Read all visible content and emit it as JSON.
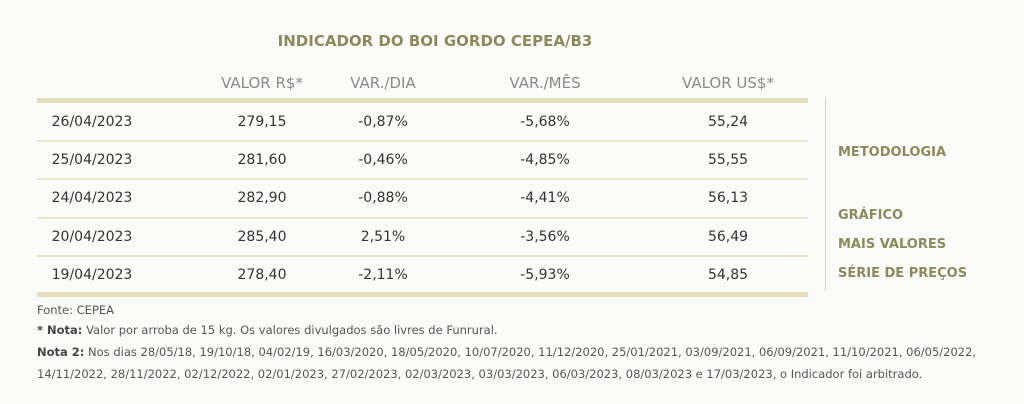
{
  "title": "INDICADOR DO BOI GORDO CEPEA/B3",
  "headers": [
    "VALOR R$*",
    "VAR./DIA",
    "VAR./MÊS",
    "VALOR US$*"
  ],
  "rows": [
    [
      "26/04/2023",
      "279,15",
      "-0,87%",
      "-5,68%",
      "55,24"
    ],
    [
      "25/04/2023",
      "281,60",
      "-0,46%",
      "-4,85%",
      "55,55"
    ],
    [
      "24/04/2023",
      "282,90",
      "-0,88%",
      "-4,41%",
      "56,13"
    ],
    [
      "20/04/2023",
      "285,40",
      "2,51%",
      "-3,56%",
      "56,49"
    ],
    [
      "19/04/2023",
      "278,40",
      "-2,11%",
      "-5,93%",
      "54,85"
    ]
  ],
  "links": [
    "METODOLOGIA",
    "GRÁFICO",
    "MAIS VALORES",
    "SÉRIE DE PREÇOS"
  ],
  "notes": {
    "source": "Fonte: CEPEA",
    "nota": {
      "label": "* Nota:",
      "text": "Valor por arroba de 15 kg. Os valores divulgados são livres de Funrural."
    },
    "nota2": {
      "label": "Nota 2:",
      "text": "Nos dias 28/05/18, 19/10/18, 04/02/19, 16/03/2020, 18/05/2020, 10/07/2020, 11/12/2020, 25/01/2021, 03/09/2021, 06/09/2021, 11/10/2021, 06/05/2022, 14/11/2022, 28/11/2022, 02/12/2022, 02/01/2023, 27/02/2023, 02/03/2023, 03/03/2023, 06/03/2023, 08/03/2023 e 17/03/2023, o Indicador foi arbitrado."
    }
  }
}
